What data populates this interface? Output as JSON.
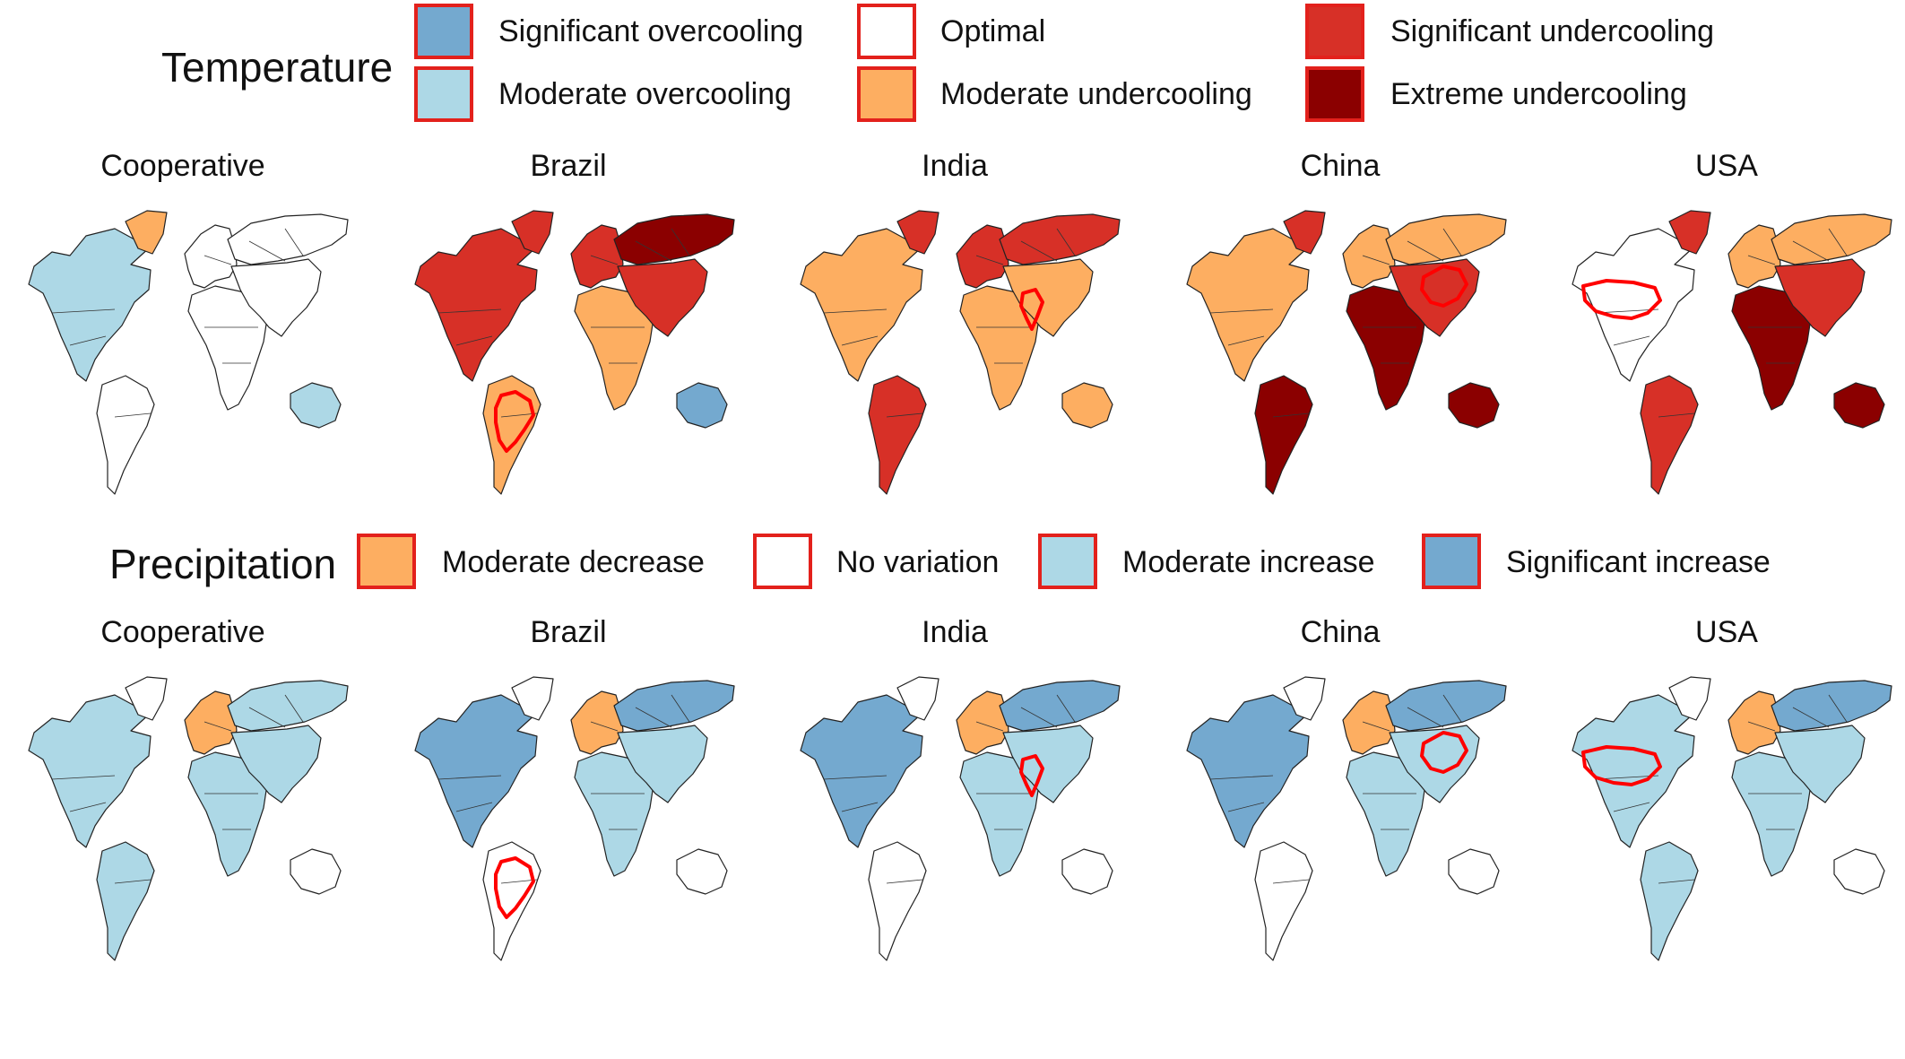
{
  "temperature": {
    "title": "Temperature",
    "legend": [
      {
        "label": "Significant overcooling",
        "color": "#74a9cf"
      },
      {
        "label": "Moderate overcooling",
        "color": "#add8e6"
      },
      {
        "label": "Optimal",
        "color": "#ffffff"
      },
      {
        "label": "Moderate undercooling",
        "color": "#fdae61"
      },
      {
        "label": "Significant undercooling",
        "color": "#d73027"
      },
      {
        "label": "Extreme undercooling",
        "color": "#8b0000"
      }
    ],
    "panels": [
      {
        "title": "Cooperative",
        "highlight": "none",
        "regions": {
          "n_america": "#add8e6",
          "greenland": "#fdae61",
          "s_america": "#ffffff",
          "europe": "#ffffff",
          "africa": "#ffffff",
          "russia": "#ffffff",
          "asia": "#ffffff",
          "australia": "#add8e6"
        }
      },
      {
        "title": "Brazil",
        "highlight": "brazil",
        "regions": {
          "n_america": "#d73027",
          "greenland": "#d73027",
          "s_america": "#fdae61",
          "europe": "#d73027",
          "africa": "#fdae61",
          "russia": "#8b0000",
          "asia": "#d73027",
          "australia": "#74a9cf"
        }
      },
      {
        "title": "India",
        "highlight": "india",
        "regions": {
          "n_america": "#fdae61",
          "greenland": "#d73027",
          "s_america": "#d73027",
          "europe": "#d73027",
          "africa": "#fdae61",
          "russia": "#d73027",
          "asia": "#fdae61",
          "australia": "#fdae61"
        }
      },
      {
        "title": "China",
        "highlight": "china",
        "regions": {
          "n_america": "#fdae61",
          "greenland": "#d73027",
          "s_america": "#8b0000",
          "europe": "#fdae61",
          "africa": "#8b0000",
          "russia": "#fdae61",
          "asia": "#d73027",
          "australia": "#8b0000"
        }
      },
      {
        "title": "USA",
        "highlight": "usa",
        "regions": {
          "n_america": "#ffffff",
          "greenland": "#d73027",
          "s_america": "#d73027",
          "europe": "#fdae61",
          "africa": "#8b0000",
          "russia": "#fdae61",
          "asia": "#d73027",
          "australia": "#8b0000"
        }
      }
    ]
  },
  "precipitation": {
    "title": "Precipitation",
    "legend": [
      {
        "label": "Moderate decrease",
        "color": "#fdae61"
      },
      {
        "label": "No variation",
        "color": "#ffffff"
      },
      {
        "label": "Moderate increase",
        "color": "#add8e6"
      },
      {
        "label": "Significant increase",
        "color": "#74a9cf"
      }
    ],
    "panels": [
      {
        "title": "Cooperative",
        "highlight": "none",
        "regions": {
          "n_america": "#add8e6",
          "greenland": "#ffffff",
          "s_america": "#add8e6",
          "europe": "#fdae61",
          "africa": "#add8e6",
          "russia": "#add8e6",
          "asia": "#add8e6",
          "australia": "#ffffff"
        }
      },
      {
        "title": "Brazil",
        "highlight": "brazil",
        "regions": {
          "n_america": "#74a9cf",
          "greenland": "#ffffff",
          "s_america": "#ffffff",
          "europe": "#fdae61",
          "africa": "#add8e6",
          "russia": "#74a9cf",
          "asia": "#add8e6",
          "australia": "#ffffff"
        }
      },
      {
        "title": "India",
        "highlight": "india",
        "regions": {
          "n_america": "#74a9cf",
          "greenland": "#ffffff",
          "s_america": "#ffffff",
          "europe": "#fdae61",
          "africa": "#add8e6",
          "russia": "#74a9cf",
          "asia": "#add8e6",
          "australia": "#ffffff"
        }
      },
      {
        "title": "China",
        "highlight": "china",
        "regions": {
          "n_america": "#74a9cf",
          "greenland": "#ffffff",
          "s_america": "#ffffff",
          "europe": "#fdae61",
          "africa": "#add8e6",
          "russia": "#74a9cf",
          "asia": "#add8e6",
          "australia": "#ffffff"
        }
      },
      {
        "title": "USA",
        "highlight": "usa",
        "regions": {
          "n_america": "#add8e6",
          "greenland": "#ffffff",
          "s_america": "#add8e6",
          "europe": "#fdae61",
          "africa": "#add8e6",
          "russia": "#74a9cf",
          "asia": "#add8e6",
          "australia": "#ffffff"
        }
      }
    ]
  },
  "highlight_color": "#ff0000"
}
